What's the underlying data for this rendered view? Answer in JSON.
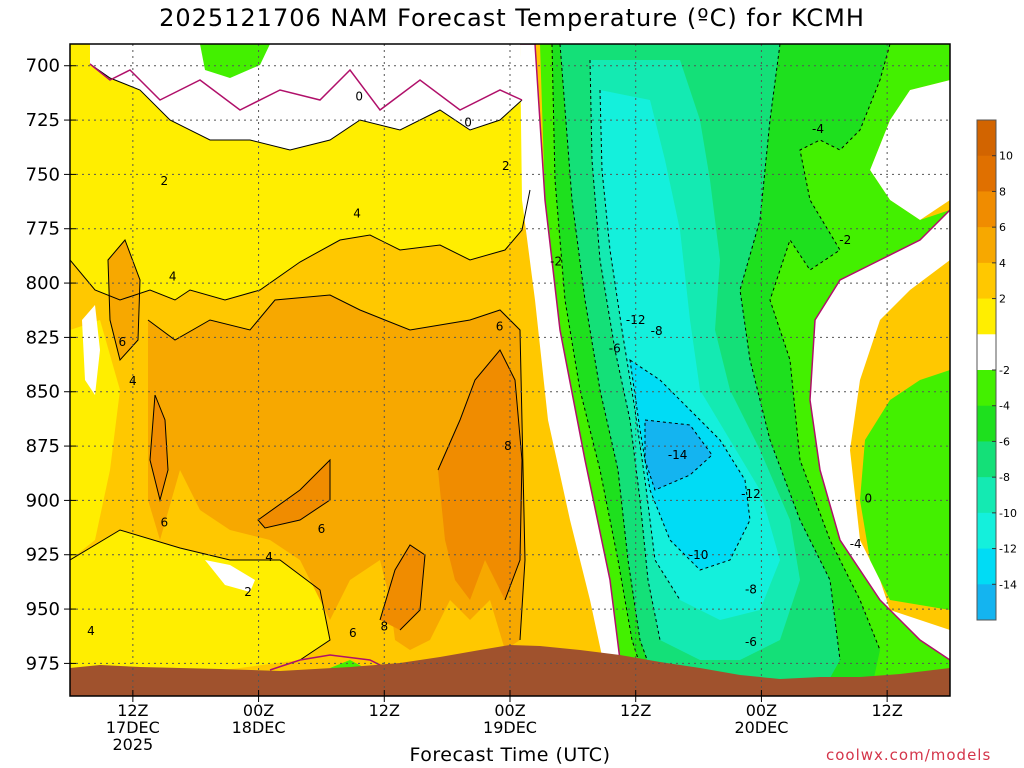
{
  "title": "2025121706 NAM Forecast Temperature (ºC) for KCMH",
  "xlabel": "Forecast Time (UTC)",
  "credit": "coolwx.com/models",
  "chart_data": {
    "type": "heatmap",
    "title": "2025121706 NAM Forecast Temperature (ºC) for KCMH",
    "xlabel": "Forecast Time (UTC)",
    "ylabel": "",
    "x_range_hours": [
      0,
      84
    ],
    "y_range_hPa": [
      690,
      990
    ],
    "y_ticks": [
      700,
      725,
      750,
      775,
      800,
      825,
      850,
      875,
      900,
      925,
      950,
      975
    ],
    "x_ticks": [
      {
        "hour": 6,
        "lines": [
          "12Z",
          "17DEC",
          "2025"
        ]
      },
      {
        "hour": 18,
        "lines": [
          "00Z",
          "18DEC"
        ]
      },
      {
        "hour": 30,
        "lines": [
          "12Z"
        ]
      },
      {
        "hour": 42,
        "lines": [
          "00Z",
          "19DEC"
        ]
      },
      {
        "hour": 54,
        "lines": [
          "12Z"
        ]
      },
      {
        "hour": 66,
        "lines": [
          "00Z",
          "20DEC"
        ]
      },
      {
        "hour": 78,
        "lines": [
          "12Z"
        ]
      }
    ],
    "grid": true,
    "colorbar": {
      "placement": "right",
      "labels": [
        "10",
        "8",
        "6",
        "4",
        "2",
        "-2",
        "-4",
        "-6",
        "-8",
        "-10",
        "-12",
        "-14"
      ],
      "colors": [
        "#e07000",
        "#f08c00",
        "#f7a800",
        "#ffc800",
        "#ffee00",
        "#ffffff",
        "#43f000",
        "#1ee01e",
        "#14e078",
        "#14eab2",
        "#14f0dc",
        "#00dcf5",
        "#14b4f0"
      ],
      "top_color": "#d26400"
    },
    "contour_labels": [
      {
        "text": "0",
        "hour": 27.6,
        "hPa": 715
      },
      {
        "text": "0",
        "hour": 38.0,
        "hPa": 727
      },
      {
        "text": "2",
        "hour": 9.0,
        "hPa": 754
      },
      {
        "text": "2",
        "hour": 41.6,
        "hPa": 747
      },
      {
        "text": "4",
        "hour": 27.4,
        "hPa": 769
      },
      {
        "text": "4",
        "hour": 9.8,
        "hPa": 798
      },
      {
        "text": "-2",
        "hour": 46.4,
        "hPa": 791
      },
      {
        "text": "-2",
        "hour": 74.0,
        "hPa": 781
      },
      {
        "text": "-4",
        "hour": 71.4,
        "hPa": 730
      },
      {
        "text": "6",
        "hour": 5.0,
        "hPa": 828
      },
      {
        "text": "6",
        "hour": 41.0,
        "hPa": 821
      },
      {
        "text": "4",
        "hour": 6.0,
        "hPa": 846
      },
      {
        "text": "-12",
        "hour": 54.0,
        "hPa": 818
      },
      {
        "text": "-8",
        "hour": 56.0,
        "hPa": 823
      },
      {
        "text": "-6",
        "hour": 52.0,
        "hPa": 831
      },
      {
        "text": "8",
        "hour": 41.8,
        "hPa": 876
      },
      {
        "text": "-14",
        "hour": 58.0,
        "hPa": 880
      },
      {
        "text": "-12",
        "hour": 65.0,
        "hPa": 898
      },
      {
        "text": "0",
        "hour": 76.2,
        "hPa": 900
      },
      {
        "text": "6",
        "hour": 9.0,
        "hPa": 911
      },
      {
        "text": "6",
        "hour": 24.0,
        "hPa": 914
      },
      {
        "text": "4",
        "hour": 19.0,
        "hPa": 927
      },
      {
        "text": "-4",
        "hour": 75.0,
        "hPa": 921
      },
      {
        "text": "-10",
        "hour": 60.0,
        "hPa": 926
      },
      {
        "text": "2",
        "hour": 17.0,
        "hPa": 943
      },
      {
        "text": "-8",
        "hour": 65.0,
        "hPa": 942
      },
      {
        "text": "4",
        "hour": 2.0,
        "hPa": 961
      },
      {
        "text": "6",
        "hour": 27.0,
        "hPa": 962
      },
      {
        "text": "8",
        "hour": 30.0,
        "hPa": 959
      },
      {
        "text": "-6",
        "hour": 65.0,
        "hPa": 966
      }
    ]
  }
}
